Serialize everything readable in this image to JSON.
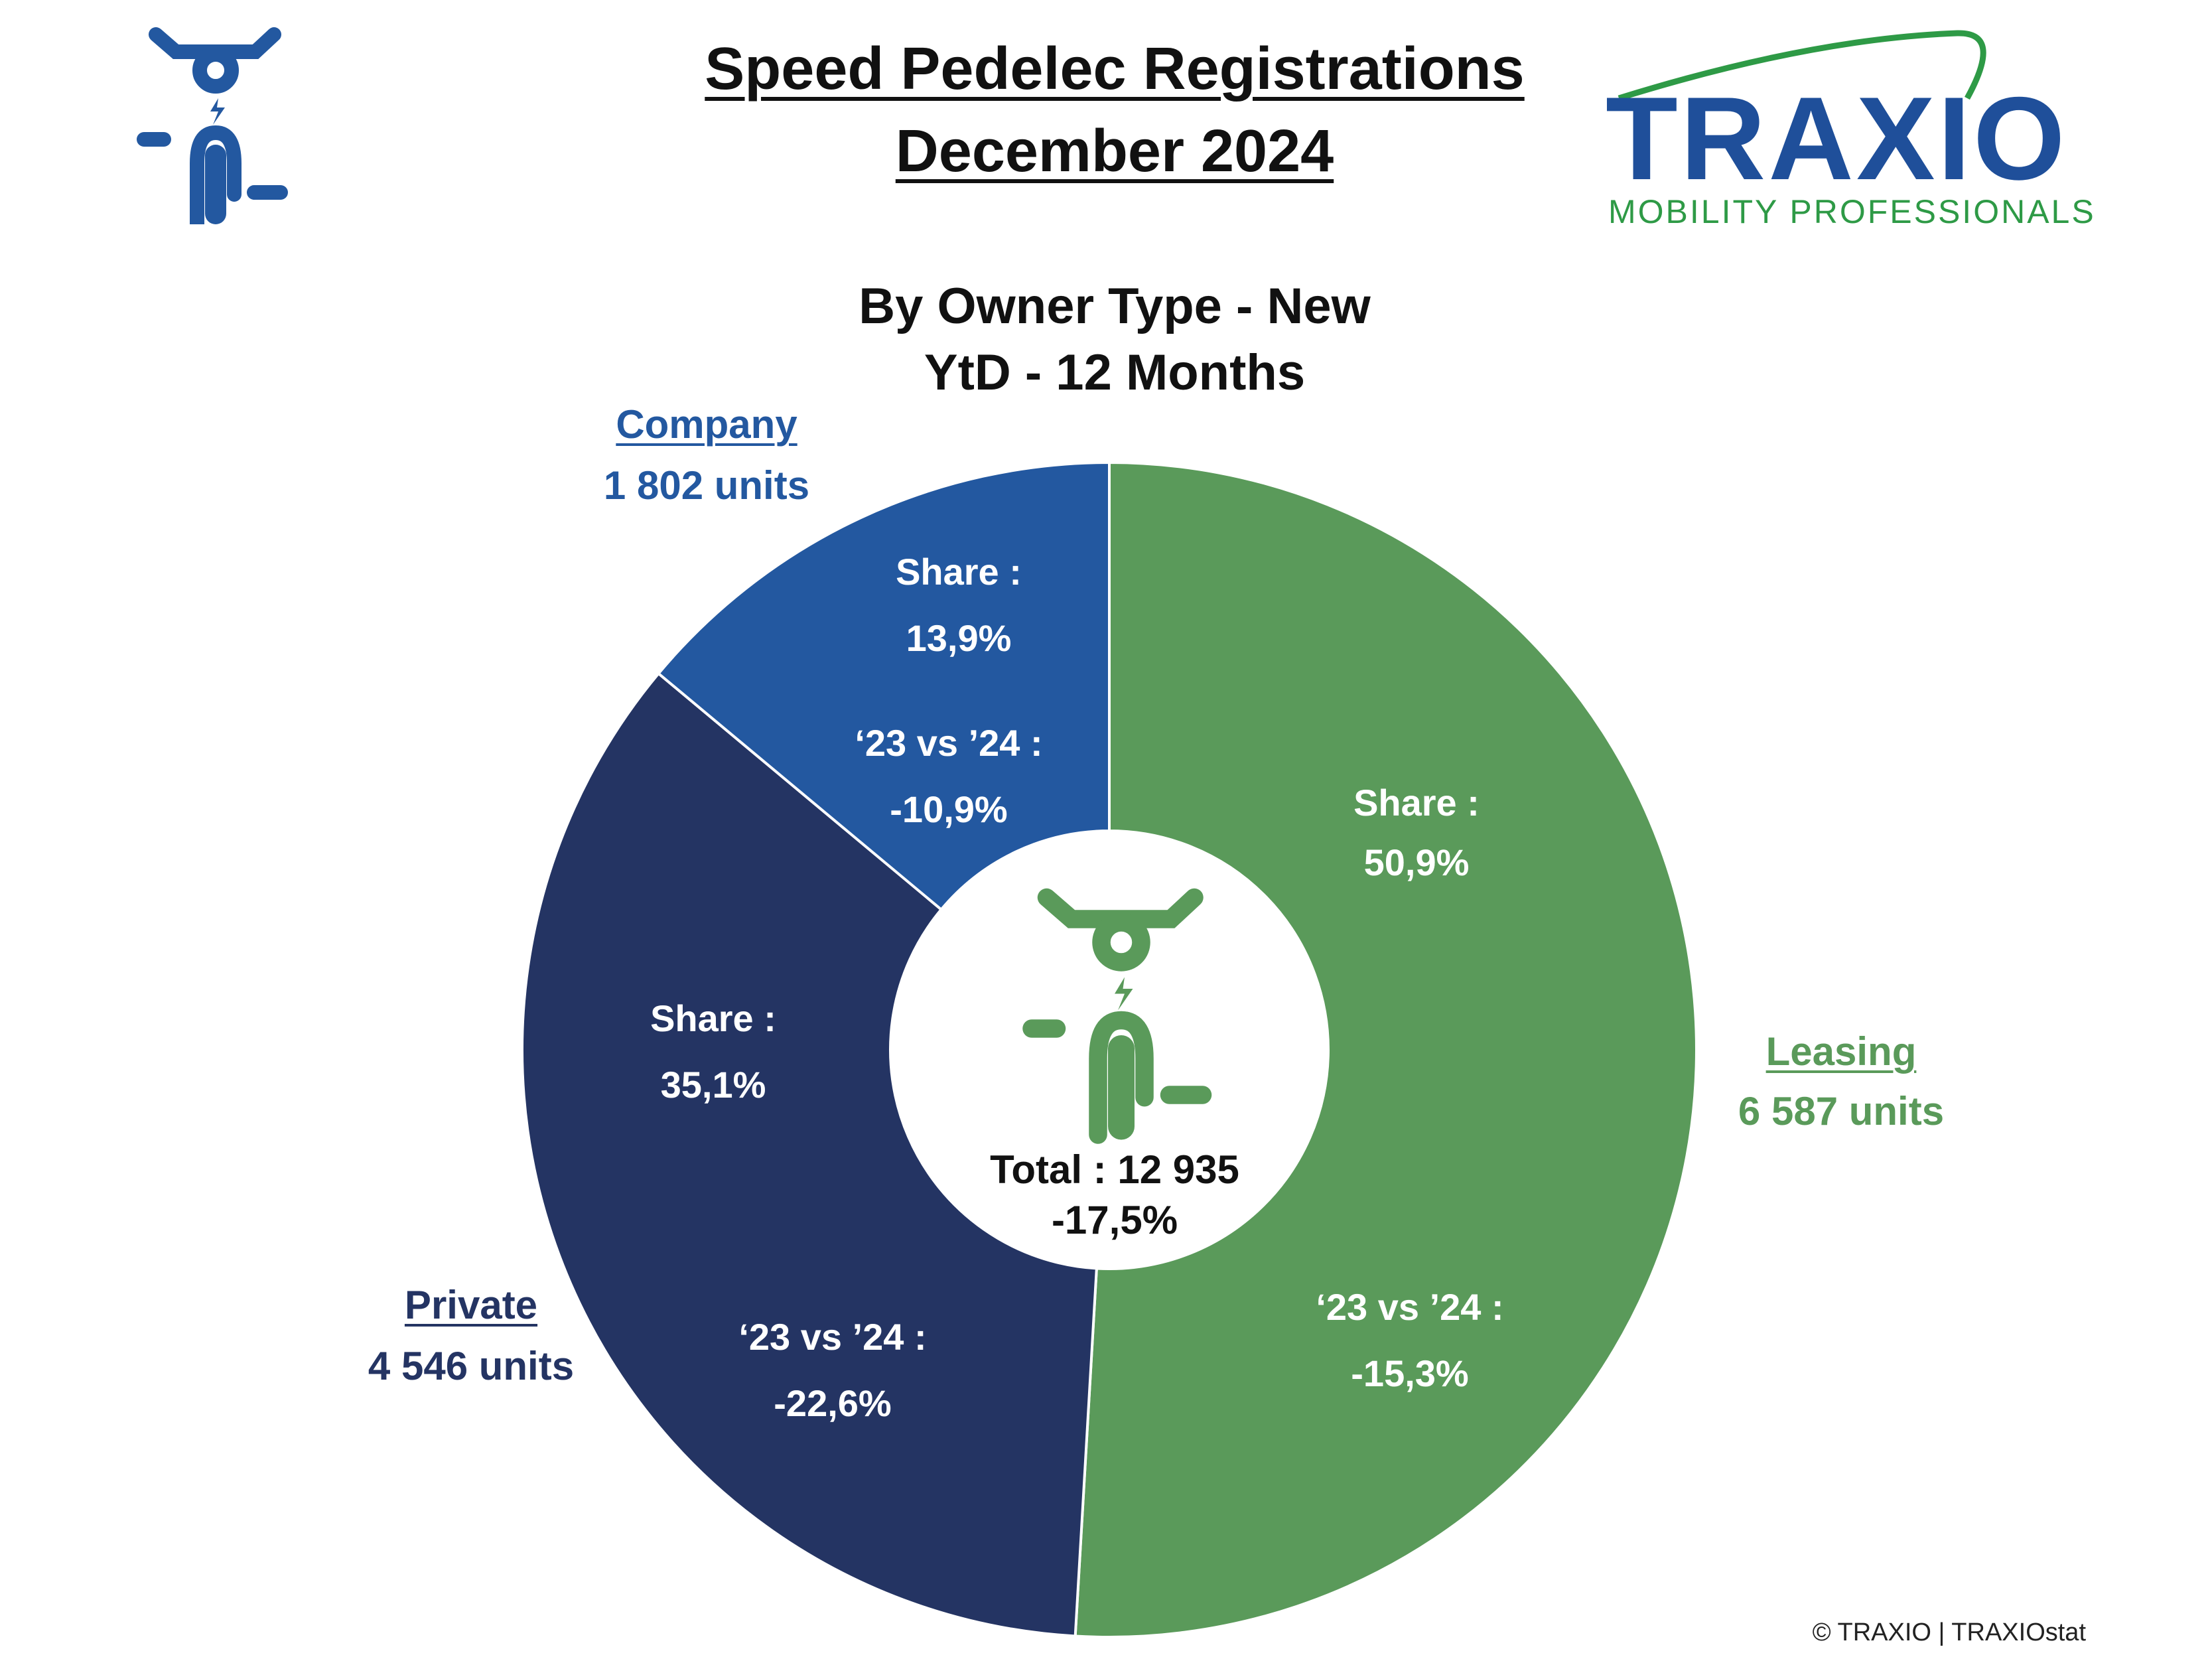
{
  "header": {
    "title_line1": "Speed Pedelec Registrations",
    "title_line2": "December 2024",
    "subtitle_line1": "By Owner Type - New",
    "subtitle_line2": "YtD - 12 Months"
  },
  "brand": {
    "logo_text": "TRAXIO",
    "logo_tagline": "MOBILITY PROFESSIONALS",
    "logo_blue": "#1f4f9a",
    "logo_green": "#2e9a46"
  },
  "colors": {
    "leasing": "#5a9a5a",
    "company": "#2358a0",
    "private": "#243463",
    "icon_blue": "#2358a0",
    "icon_green": "#5a9a5a"
  },
  "icons": {
    "header_icon": "speed-pedelec-rider-icon",
    "center_icon": "speed-pedelec-rider-icon"
  },
  "chart_data": {
    "type": "pie",
    "donut": true,
    "categories": [
      "Leasing",
      "Private",
      "Company"
    ],
    "values": [
      6587,
      4546,
      1802
    ],
    "units_labels": [
      "6 587 units",
      "4 546 units",
      "1 802 units"
    ],
    "share_label": "Share :",
    "shares": [
      "50,9%",
      "35,1%",
      "13,9%"
    ],
    "change_label": "‘23 vs ’24 :",
    "changes": [
      "-15,3%",
      "-22,6%",
      "-10,9%"
    ],
    "total_label": "Total : 12 935",
    "total_change": "-17,5%"
  },
  "footer": {
    "copyright": "© TRAXIO | TRAXIOstat"
  }
}
